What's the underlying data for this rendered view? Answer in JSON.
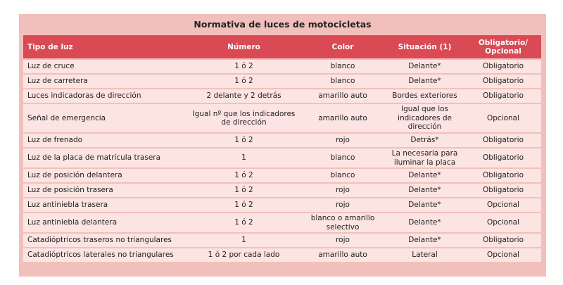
{
  "title": "Normativa de luces de motocicletas",
  "headers": {
    "tipo": "Tipo de luz",
    "numero": "Número",
    "color": "Color",
    "situacion": "Situación (1)",
    "obligatorio": "Obligatorio/ Opcional"
  },
  "rows": [
    {
      "tipo": "Luz de cruce",
      "numero": "1 ó 2",
      "color": "blanco",
      "situacion": "Delante*",
      "obligatorio": "Obligatorio"
    },
    {
      "tipo": "Luz de carretera",
      "numero": "1 ó 2",
      "color": "blanco",
      "situacion": "Delante*",
      "obligatorio": "Obligatorio"
    },
    {
      "tipo": "Luces indicadoras de dirección",
      "numero": "2 delante y 2 detrás",
      "color": "amarillo auto",
      "situacion": "Bordes exteriores",
      "obligatorio": "Obligatorio"
    },
    {
      "tipo": "Señal de emergencia",
      "numero": "Igual nº que los indicadores de dirección",
      "color": "amarillo auto",
      "situacion": "Igual que los indicadores de dirección",
      "obligatorio": "Opcional"
    },
    {
      "tipo": "Luz de frenado",
      "numero": "1 ó 2",
      "color": "rojo",
      "situacion": "Detrás*",
      "obligatorio": "Obligatorio"
    },
    {
      "tipo": "Luz de la placa de matrícula trasera",
      "numero": "1",
      "color": "blanco",
      "situacion": "La necesaria para iluminar la placa",
      "obligatorio": "Obligatorio"
    },
    {
      "tipo": "Luz de posición delantera",
      "numero": "1 ó 2",
      "color": "blanco",
      "situacion": "Delante*",
      "obligatorio": "Obligatorio"
    },
    {
      "tipo": "Luz de posición trasera",
      "numero": "1 ó 2",
      "color": "rojo",
      "situacion": "Delante*",
      "obligatorio": "Obligatorio"
    },
    {
      "tipo": "Luz antiniebla trasera",
      "numero": "1 ó 2",
      "color": "rojo",
      "situacion": "Delante*",
      "obligatorio": "Opcional"
    },
    {
      "tipo": "Luz antiniebla delantera",
      "numero": "1 ó 2",
      "color": "blanco o amarillo selectivo",
      "situacion": "Delante*",
      "obligatorio": "Opcional"
    },
    {
      "tipo": "Catadióptricos traseros no triangulares",
      "numero": "1",
      "color": "rojo",
      "situacion": "Delante*",
      "obligatorio": "Obligatorio"
    },
    {
      "tipo": "Catadióptricos laterales no triangulares",
      "numero": "1 ó 2 por cada lado",
      "color": "amarillo auto",
      "situacion": "Lateral",
      "obligatorio": "Opcional"
    }
  ]
}
